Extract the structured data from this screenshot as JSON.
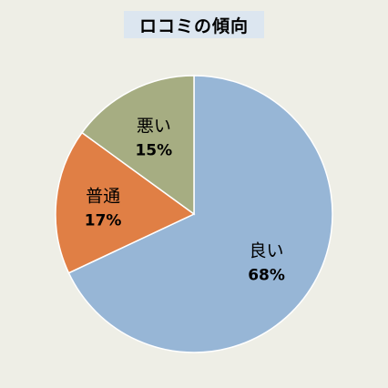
{
  "chart_data": {
    "type": "pie",
    "title": "ロコミの傾向",
    "categories": [
      "良い",
      "普通",
      "悪い"
    ],
    "values": [
      68,
      17,
      15
    ],
    "value_labels": [
      "68%",
      "17%",
      "15%"
    ],
    "colors": [
      "#97b6d6",
      "#e07f45",
      "#a6ad82"
    ],
    "start_angle_deg": 0,
    "direction": "clockwise",
    "legend": "none"
  }
}
